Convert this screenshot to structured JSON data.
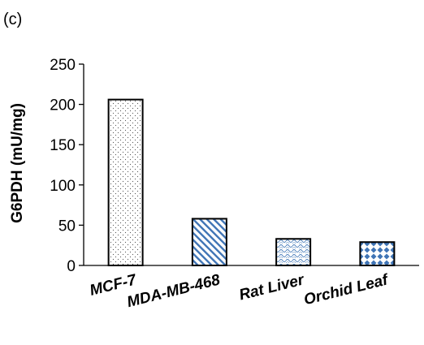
{
  "panel_label": "(c)",
  "chart_data": {
    "type": "bar",
    "title": "",
    "xlabel": "",
    "ylabel": "G6PDH (mU/mg)",
    "categories": [
      "MCF-7",
      "MDA-MB-468",
      "Rat Liver",
      "Orchid Leaf"
    ],
    "values": [
      206,
      58,
      33,
      29
    ],
    "ylim": [
      0,
      250
    ],
    "yticks": [
      0,
      50,
      100,
      150,
      200,
      250
    ],
    "grid": false,
    "legend": "none",
    "bar_fill_patterns": [
      "fine-dots",
      "diagonal-stripes",
      "wave-crosshatch",
      "diamond-grid"
    ],
    "bar_pattern_color": "#4a7ebb",
    "axis_color": "#000000"
  }
}
